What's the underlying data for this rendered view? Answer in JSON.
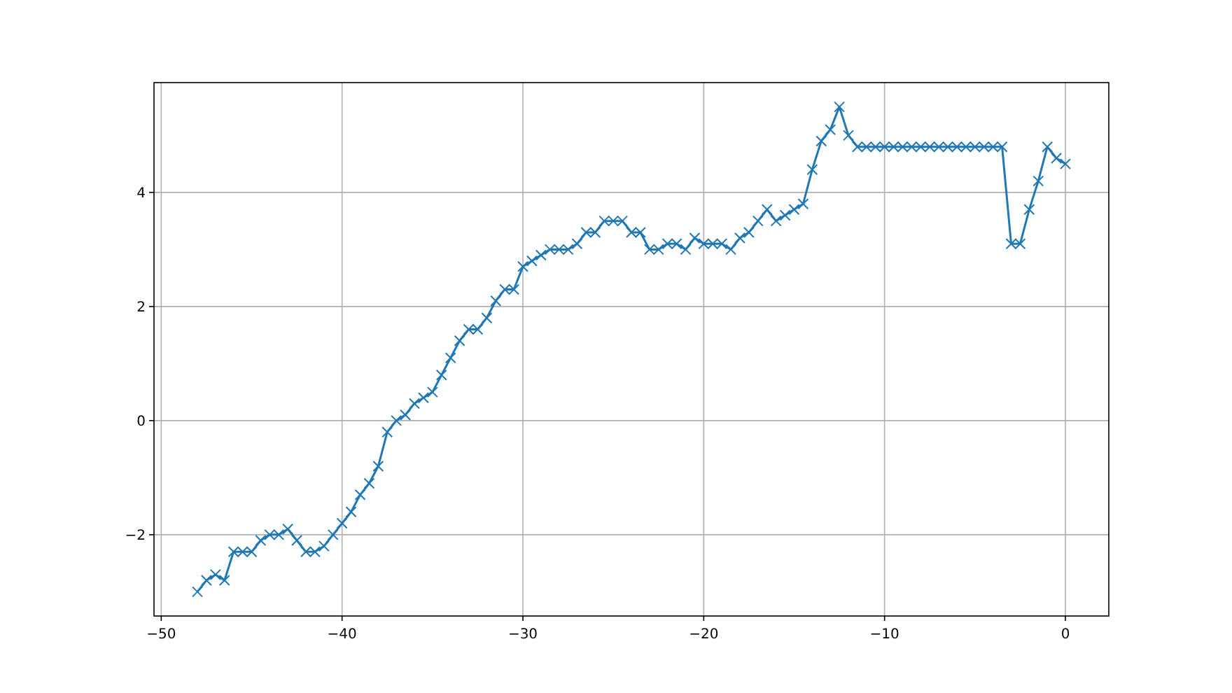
{
  "chart_data": {
    "type": "line",
    "x": [
      -48,
      -47.5,
      -47,
      -46.5,
      -46,
      -45.5,
      -45,
      -44.5,
      -44,
      -43.5,
      -43,
      -42.5,
      -42,
      -41.5,
      -41,
      -40.5,
      -40,
      -39.5,
      -39,
      -38.5,
      -38,
      -37.5,
      -37,
      -36.5,
      -36,
      -35.5,
      -35,
      -34.5,
      -34,
      -33.5,
      -33,
      -32.5,
      -32,
      -31.5,
      -31,
      -30.5,
      -30,
      -29.5,
      -29,
      -28.5,
      -28,
      -27.5,
      -27,
      -26.5,
      -26,
      -25.5,
      -25,
      -24.5,
      -24,
      -23.5,
      -23,
      -22.5,
      -22,
      -21.5,
      -21,
      -20.5,
      -20,
      -19.5,
      -19,
      -18.5,
      -18,
      -17.5,
      -17,
      -16.5,
      -16,
      -15.5,
      -15,
      -14.5,
      -14,
      -13.5,
      -13,
      -12.5,
      -12,
      -11.5,
      -11,
      -10.5,
      -10,
      -9.5,
      -9,
      -8.5,
      -8,
      -7.5,
      -7,
      -6.5,
      -6,
      -5.5,
      -5,
      -4.5,
      -4,
      -3.5,
      -3,
      -2.5,
      -2,
      -1.5,
      -1,
      -0.5,
      0
    ],
    "series": [
      {
        "color": "#1f77b4",
        "values": [
          -3.0,
          -2.8,
          -2.7,
          -2.8,
          -2.3,
          -2.3,
          -2.3,
          -2.1,
          -2.0,
          -2.0,
          -1.9,
          -2.1,
          -2.3,
          -2.3,
          -2.2,
          -2.0,
          -1.8,
          -1.6,
          -1.3,
          -1.1,
          -0.8,
          -0.2,
          0.0,
          0.1,
          0.3,
          0.4,
          0.5,
          0.8,
          1.1,
          1.4,
          1.6,
          1.6,
          1.8,
          2.1,
          2.3,
          2.3,
          2.7,
          2.8,
          2.9,
          3.0,
          3.0,
          3.0,
          3.1,
          3.3,
          3.3,
          3.5,
          3.5,
          3.5,
          3.3,
          3.3,
          3.0,
          3.0,
          3.1,
          3.1,
          3.0,
          3.2,
          3.1,
          3.1,
          3.1,
          3.0,
          3.2,
          3.3,
          3.5,
          3.7,
          3.5,
          3.6,
          3.7,
          3.8,
          4.4,
          4.9,
          5.1,
          5.5,
          5.0,
          4.8,
          4.8,
          4.8,
          4.8,
          4.8,
          4.8,
          4.8,
          4.8,
          4.8,
          4.8,
          4.8,
          4.8,
          4.8,
          4.8,
          4.8,
          4.8,
          4.8,
          3.1,
          3.1,
          3.7,
          4.2,
          4.8,
          4.6,
          4.5
        ]
      }
    ],
    "xlim": [
      -50.4,
      2.4
    ],
    "ylim": [
      -3.425,
      5.925
    ],
    "xticks": [
      {
        "value": -50,
        "label": "−50"
      },
      {
        "value": -40,
        "label": "−40"
      },
      {
        "value": -30,
        "label": "−30"
      },
      {
        "value": -20,
        "label": "−20"
      },
      {
        "value": -10,
        "label": "−10"
      },
      0
    ],
    "yticks": [
      {
        "value": -2,
        "label": "−2"
      },
      0,
      2,
      4
    ],
    "grid": true,
    "marker": "cross",
    "line_style": "solid"
  }
}
